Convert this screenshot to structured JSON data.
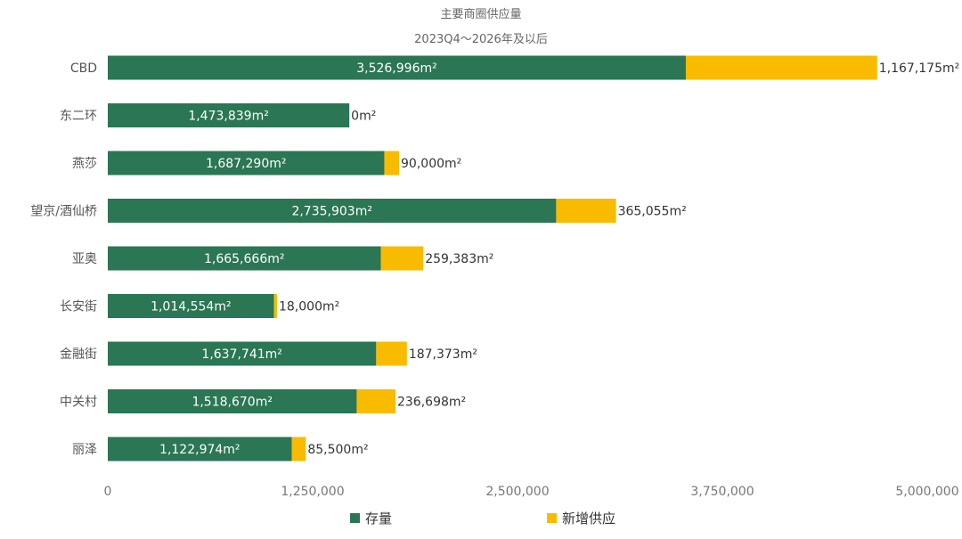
{
  "chart_data": {
    "type": "bar",
    "orientation": "horizontal",
    "stacked": true,
    "title": "主要商圈供应量",
    "subtitle": "2023Q4～2026年及以后",
    "categories": [
      "CBD",
      "东二环",
      "燕莎",
      "望京/酒仙桥",
      "亚奥",
      "长安街",
      "金融街",
      "中关村",
      "丽泽"
    ],
    "series": [
      {
        "name": "存量",
        "color": "#2b7654",
        "values": [
          3526996,
          1473839,
          1687290,
          2735903,
          1665666,
          1014554,
          1637741,
          1518670,
          1122974
        ],
        "labels": [
          "3,526,996m²",
          "1,473,839m²",
          "1,687,290m²",
          "2,735,903m²",
          "1,665,666m²",
          "1,014,554m²",
          "1,637,741m²",
          "1,518,670m²",
          "1,122,974m²"
        ]
      },
      {
        "name": "新增供应",
        "color": "#f8bb00",
        "values": [
          1167175,
          0,
          90000,
          365055,
          259383,
          18000,
          187373,
          236698,
          85500
        ],
        "labels": [
          "1,167,175m²",
          "0m²",
          "90,000m²",
          "365,055m²",
          "259,383m²",
          "18,000m²",
          "187,373m²",
          "236,698m²",
          "85,500m²"
        ]
      }
    ],
    "xlim": [
      0,
      5000000
    ],
    "xticks": [
      "0",
      "1,250,000",
      "2,500,000",
      "3,750,000",
      "5,000,000"
    ],
    "xtick_values": [
      0,
      1250000,
      2500000,
      3750000,
      5000000
    ],
    "grid": false,
    "legend": "bottom"
  }
}
